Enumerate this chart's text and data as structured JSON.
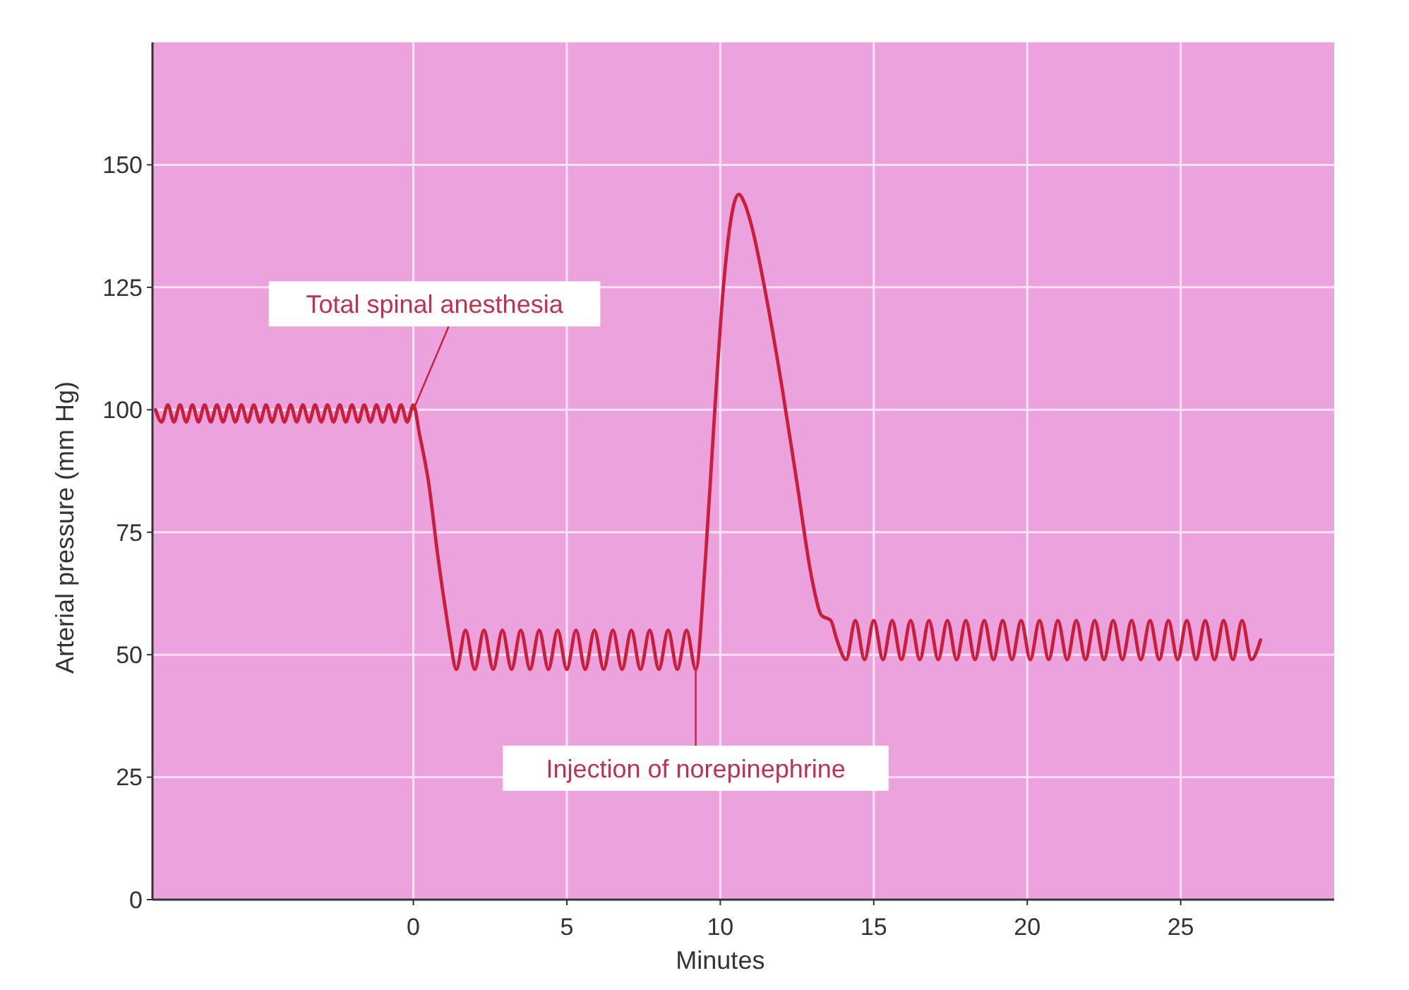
{
  "chart_data": {
    "type": "line",
    "xlabel": "Minutes",
    "ylabel": "Arterial pressure (mm Hg)",
    "xlim": [
      -8.5,
      30
    ],
    "xticks": [
      0,
      5,
      10,
      15,
      20,
      25
    ],
    "ylim": [
      0,
      175
    ],
    "yticks": [
      0,
      25,
      50,
      75,
      100,
      125,
      150
    ],
    "grid": true,
    "marker": "none",
    "line_style": "solid",
    "series": [
      {
        "color": "#c8203c",
        "x": [
          -8.4,
          -8.2,
          -8,
          -7.8,
          -7.6,
          -7.4,
          -7.2,
          -7,
          -6.8,
          -6.6,
          -6.4,
          -6.2,
          -6,
          -5.8,
          -5.6,
          -5.4,
          -5.2,
          -5,
          -4.8,
          -4.6,
          -4.4,
          -4.2,
          -4,
          -3.8,
          -3.6,
          -3.4,
          -3.2,
          -3,
          -2.8,
          -2.6,
          -2.4,
          -2.2,
          -2,
          -1.8,
          -1.6,
          -1.4,
          -1.2,
          -1,
          -0.8,
          -0.6,
          -0.4,
          -0.2,
          0,
          0.2,
          0.5,
          0.8,
          1.1,
          1.2,
          1.4,
          1.7,
          2,
          2.3,
          2.6,
          2.9,
          3.2,
          3.5,
          3.8,
          4.1,
          4.4,
          4.7,
          5,
          5.3,
          5.6,
          5.9,
          6.2,
          6.5,
          6.8,
          7.1,
          7.4,
          7.7,
          8,
          8.3,
          8.6,
          8.9,
          9.2,
          9.5,
          9.8,
          10.1,
          10.35,
          10.6,
          10.8,
          11,
          11.5,
          12,
          12.5,
          13,
          13.3,
          13.6,
          13.8,
          14.1,
          14.4,
          14.7,
          15,
          15.3,
          15.6,
          15.9,
          16.2,
          16.5,
          16.8,
          17.1,
          17.4,
          17.7,
          18,
          18.3,
          18.6,
          18.9,
          19.2,
          19.5,
          19.8,
          20.1,
          20.4,
          20.7,
          21,
          21.3,
          21.6,
          21.9,
          22.2,
          22.5,
          22.8,
          23.1,
          23.4,
          23.7,
          24,
          24.3,
          24.6,
          24.9,
          25.2,
          25.5,
          25.8,
          26.1,
          26.4,
          26.7,
          27,
          27.3,
          27.6
        ],
        "values": [
          100,
          97.5,
          101,
          97.5,
          101,
          97.5,
          101,
          97.5,
          101,
          97.5,
          101,
          97.5,
          101,
          97.5,
          101,
          97.5,
          101,
          97.5,
          101,
          97.5,
          101,
          97.5,
          101,
          97.5,
          101,
          97.5,
          101,
          97.5,
          101,
          97.5,
          101,
          97.5,
          101,
          97.5,
          101,
          97.5,
          101,
          97.5,
          101,
          97.5,
          101,
          97.5,
          101,
          95,
          85,
          70,
          57,
          53,
          47,
          55,
          47,
          55,
          47,
          55,
          47,
          55,
          47,
          55,
          47,
          55,
          47,
          55,
          47,
          55,
          47,
          55,
          47,
          55,
          47,
          55,
          47,
          55,
          47,
          55,
          47,
          68,
          98,
          125,
          139,
          144,
          142,
          138,
          123,
          105,
          85,
          65,
          58,
          57,
          53,
          49,
          57,
          49,
          57,
          49,
          57,
          49,
          57,
          49,
          57,
          49,
          57,
          49,
          57,
          49,
          57,
          49,
          57,
          49,
          57,
          49,
          57,
          49,
          57,
          49,
          57,
          49,
          57,
          49,
          57,
          49,
          57,
          49,
          57,
          49,
          57,
          49,
          57,
          49,
          57,
          49,
          57,
          49,
          57,
          49,
          53
        ]
      }
    ],
    "annotations": [
      {
        "text": "Total spinal anesthesia",
        "x": 0,
        "y": 100
      },
      {
        "text": "Injection of norepinephrine",
        "x": 9.2,
        "y": 47
      }
    ]
  }
}
